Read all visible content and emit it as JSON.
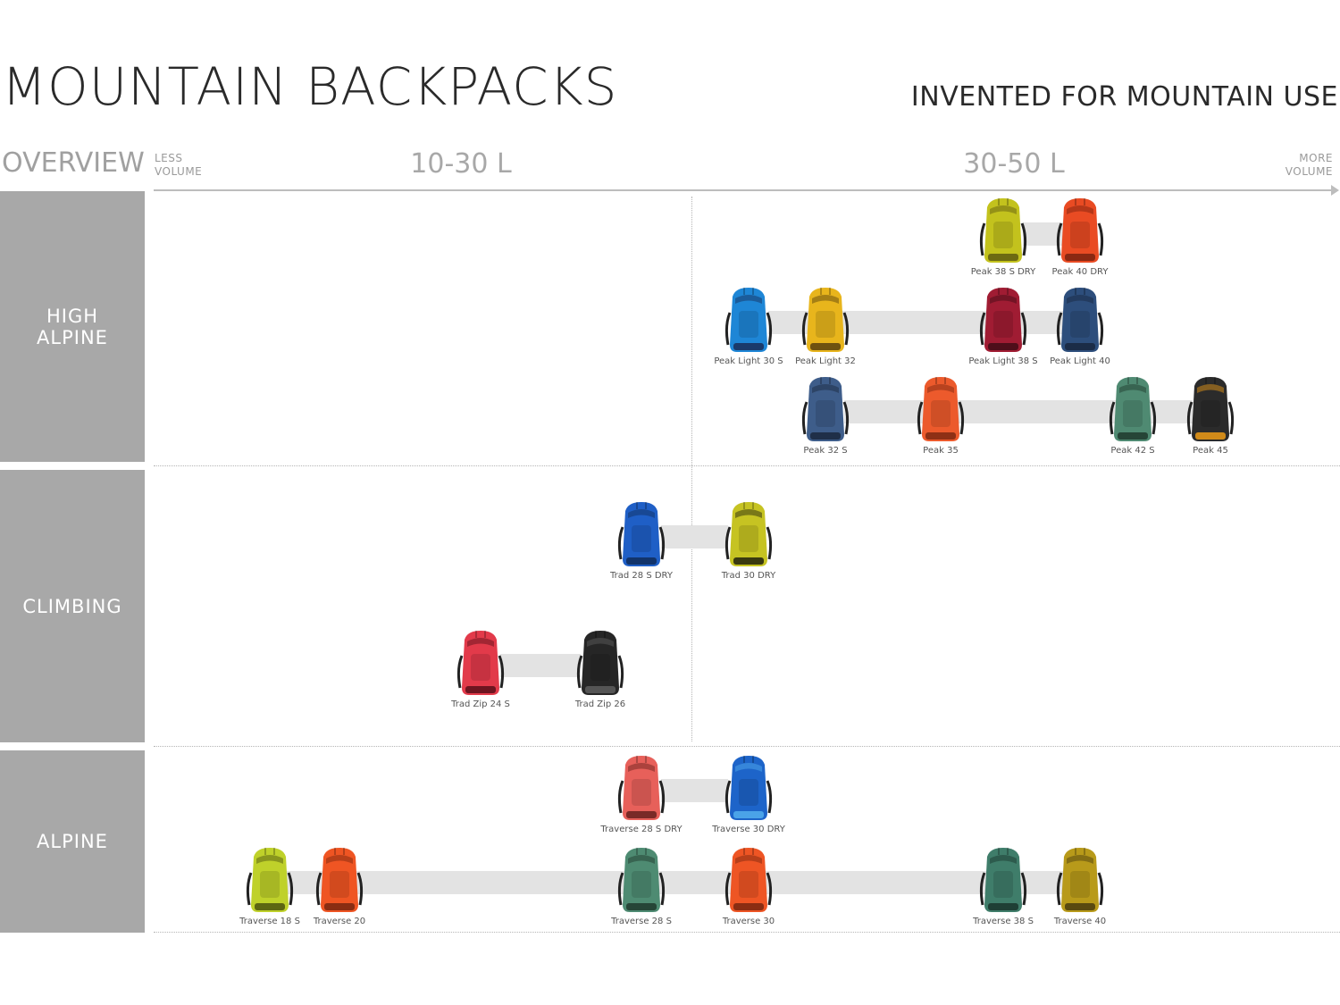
{
  "header": {
    "title": "MOUNTAIN BACKPACKS",
    "subtitle": "INVENTED FOR MOUNTAIN USE",
    "overview": "OVERVIEW",
    "less_volume": "LESS\nVOLUME",
    "more_volume": "MORE\nVOLUME",
    "ranges": [
      "10-30 L",
      "30-50 L"
    ]
  },
  "categories": [
    {
      "label": "HIGH\nALPINE"
    },
    {
      "label": "CLIMBING"
    },
    {
      "label": "ALPINE"
    }
  ],
  "packs": [
    {
      "name": "Peak 38 S DRY",
      "color": "#c3c21d",
      "dark": "#6d6a12"
    },
    {
      "name": "Peak 40 DRY",
      "color": "#e94b23",
      "dark": "#8a2812"
    },
    {
      "name": "Peak Light 30 S",
      "color": "#1e86d6",
      "dark": "#1a3a6b"
    },
    {
      "name": "Peak Light 32",
      "color": "#e8b51c",
      "dark": "#6e5210"
    },
    {
      "name": "Peak Light 38 S",
      "color": "#a01c33",
      "dark": "#4e0e1a"
    },
    {
      "name": "Peak Light 40",
      "color": "#2d4e7c",
      "dark": "#1b2c47"
    },
    {
      "name": "Peak 32 S",
      "color": "#3e5d8a",
      "dark": "#1f2f48"
    },
    {
      "name": "Peak 35",
      "color": "#ec5a2c",
      "dark": "#8e3015"
    },
    {
      "name": "Peak 42 S",
      "color": "#4f8a72",
      "dark": "#264537"
    },
    {
      "name": "Peak 45",
      "color": "#2b2b2b",
      "dark": "#d08a19"
    },
    {
      "name": "Trad 28 S DRY",
      "color": "#1f5fc6",
      "dark": "#12346b"
    },
    {
      "name": "Trad 30 DRY",
      "color": "#c6c322",
      "dark": "#3a3a10"
    },
    {
      "name": "Trad Zip 24 S",
      "color": "#e23a4a",
      "dark": "#6e1520"
    },
    {
      "name": "Trad Zip 26",
      "color": "#262626",
      "dark": "#555555"
    },
    {
      "name": "Traverse 28 S DRY",
      "color": "#e7605a",
      "dark": "#7a2a27"
    },
    {
      "name": "Traverse 30 DRY",
      "color": "#1d64c9",
      "dark": "#4aa3e8"
    },
    {
      "name": "Traverse 18 S",
      "color": "#bfd12a",
      "dark": "#5d6612"
    },
    {
      "name": "Traverse 20",
      "color": "#ef5523",
      "dark": "#8a2d12"
    },
    {
      "name": "Traverse 28 S",
      "color": "#4e8b72",
      "dark": "#264537"
    },
    {
      "name": "Traverse 30",
      "color": "#ee5524",
      "dark": "#8a2d12"
    },
    {
      "name": "Traverse 38 S",
      "color": "#3f7d6a",
      "dark": "#1f3f35"
    },
    {
      "name": "Traverse 40",
      "color": "#b89a1a",
      "dark": "#5a4a10"
    }
  ]
}
